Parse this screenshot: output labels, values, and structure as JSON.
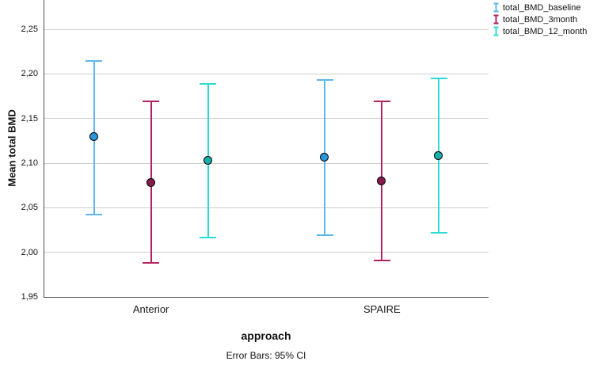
{
  "chart_data": {
    "type": "errorbar",
    "categories": [
      "Anterior",
      "SPAIRE"
    ],
    "series": [
      {
        "name": "total_BMD_baseline",
        "color": "#5eb6ec",
        "marker_color": "#2a97dd",
        "points": [
          {
            "category": "Anterior",
            "mean": 2.129,
            "ci_low": 2.042,
            "ci_high": 2.215
          },
          {
            "category": "SPAIRE",
            "mean": 2.106,
            "ci_low": 2.019,
            "ci_high": 2.193
          }
        ]
      },
      {
        "name": "total_BMD_3month",
        "color": "#b32261",
        "marker_color": "#851d4c",
        "points": [
          {
            "category": "Anterior",
            "mean": 2.078,
            "ci_low": 1.988,
            "ci_high": 2.169
          },
          {
            "category": "SPAIRE",
            "mean": 2.08,
            "ci_low": 1.991,
            "ci_high": 2.169
          }
        ]
      },
      {
        "name": "total_BMD_12_month",
        "color": "#2cdcd4",
        "marker_color": "#1aafa8",
        "points": [
          {
            "category": "Anterior",
            "mean": 2.103,
            "ci_low": 2.017,
            "ci_high": 2.189
          },
          {
            "category": "SPAIRE",
            "mean": 2.108,
            "ci_low": 2.022,
            "ci_high": 2.195
          }
        ]
      }
    ],
    "xlabel": "approach",
    "ylabel": "Mean total BMD",
    "yticks": [
      1.95,
      2.0,
      2.05,
      2.1,
      2.15,
      2.2,
      2.25
    ],
    "ytick_labels": [
      "1,95",
      "2,00",
      "2,05",
      "2,10",
      "2,15",
      "2,20",
      "2,25"
    ],
    "ylim": [
      1.95,
      2.283
    ],
    "grid": true,
    "legend_position": "top-right",
    "footnote": "Error Bars: 95% CI"
  }
}
